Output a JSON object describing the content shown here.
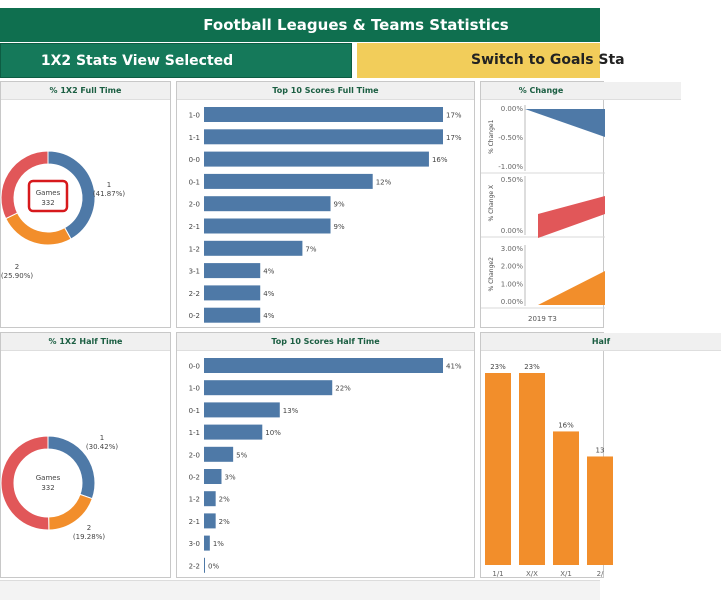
{
  "header": {
    "title": "Football Leagues & Teams Statistics"
  },
  "buttons": {
    "selected_label": "1X2 Stats View Selected",
    "switch_label": "Switch to Goals Sta"
  },
  "donut_full": {
    "title": "% 1X2 Full Time",
    "center_label": "Games",
    "center_value": "332",
    "slices": [
      {
        "key": "1",
        "pct": 41.87,
        "color": "#4e79a7",
        "label1": "1",
        "label2": "(41.87%)"
      },
      {
        "key": "2",
        "pct": 25.9,
        "color": "#f28e2b",
        "label1": "2",
        "label2": "(25.90%)"
      },
      {
        "key": "X",
        "pct": 32.23,
        "color": "#e15759",
        "label1": ")",
        "label2": ""
      }
    ]
  },
  "donut_half": {
    "title": "% 1X2 Half Time",
    "center_label": "Games",
    "center_value": "332",
    "slices": [
      {
        "key": "1",
        "pct": 30.42,
        "color": "#4e79a7",
        "label1": "1",
        "label2": "(30.42%)"
      },
      {
        "key": "2",
        "pct": 19.28,
        "color": "#f28e2b",
        "label1": "2",
        "label2": "(19.28%)"
      },
      {
        "key": "X",
        "pct": 50.3,
        "color": "#e15759",
        "label1": "",
        "label2": ""
      }
    ]
  },
  "colors": {
    "blue": "#4e79a7",
    "orange": "#f28e2b",
    "red": "#e15759",
    "green_header": "#0f6f4f",
    "yellow_button": "#f2cd5a"
  },
  "chart_data": [
    {
      "type": "bar",
      "title": "Top 10 Scores Full Time",
      "orientation": "horizontal",
      "categories": [
        "1-0",
        "1-1",
        "0-0",
        "0-1",
        "2-0",
        "2-1",
        "1-2",
        "3-1",
        "2-2",
        "0-2"
      ],
      "values": [
        17,
        17,
        16,
        12,
        9,
        9,
        7,
        4,
        4,
        4
      ],
      "value_labels": [
        "17%",
        "17%",
        "16%",
        "12%",
        "9%",
        "9%",
        "7%",
        "4%",
        "4%",
        "4%"
      ],
      "color": "#4e79a7"
    },
    {
      "type": "bar",
      "title": "Top 10 Scores Half Time",
      "orientation": "horizontal",
      "categories": [
        "0-0",
        "1-0",
        "0-1",
        "1-1",
        "2-0",
        "0-2",
        "1-2",
        "2-1",
        "3-0",
        "2-2"
      ],
      "values": [
        41,
        22,
        13,
        10,
        5,
        3,
        2,
        2,
        1,
        0
      ],
      "value_labels": [
        "41%",
        "22%",
        "13%",
        "10%",
        "5%",
        "3%",
        "2%",
        "2%",
        "1%",
        "0%"
      ],
      "color": "#4e79a7"
    },
    {
      "type": "area",
      "title": "% Change",
      "x_label": "2019 T3",
      "panels": [
        {
          "ylabel": "% Change1",
          "ticks": [
            "0.00%",
            "-0.50%",
            "-1.00%"
          ],
          "color": "#4e79a7"
        },
        {
          "ylabel": "% Change X",
          "ticks": [
            "0.50%",
            "0.00%"
          ],
          "color": "#e15759"
        },
        {
          "ylabel": "% Change2",
          "ticks": [
            "3.00%",
            "2.00%",
            "1.00%",
            "0.00%"
          ],
          "color": "#f28e2b"
        }
      ]
    },
    {
      "type": "bar",
      "title": "Half",
      "categories": [
        "1/1",
        "X/X",
        "X/1",
        "2/"
      ],
      "values": [
        23,
        23,
        16,
        13
      ],
      "value_labels": [
        "23%",
        "23%",
        "16%",
        "13"
      ],
      "color": "#f28e2b"
    }
  ]
}
